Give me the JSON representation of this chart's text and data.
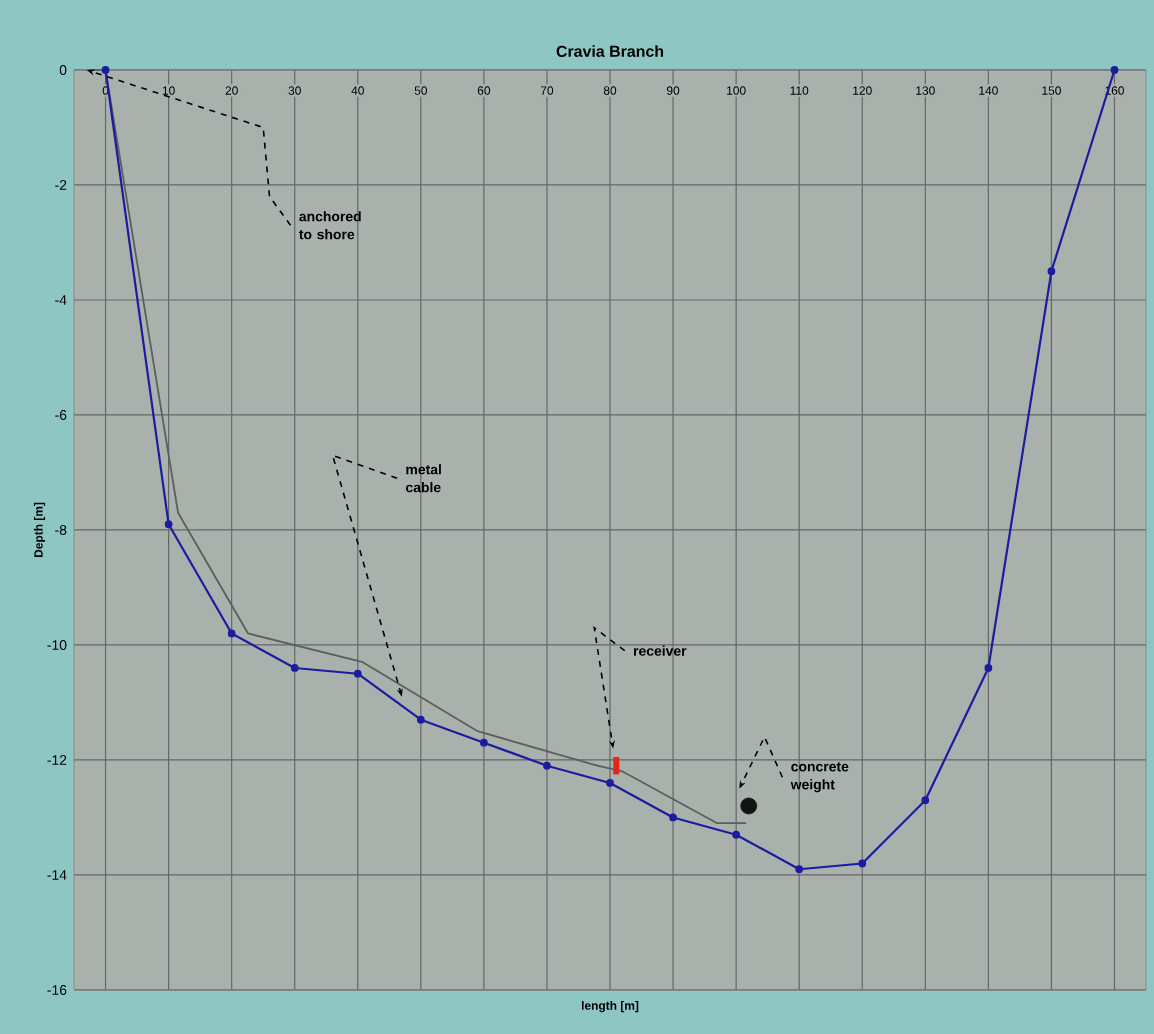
{
  "chart_data": {
    "type": "line",
    "title": "Cravia Branch",
    "xlabel": "length [m]",
    "ylabel": "Depth [m]",
    "xlim": [
      -5,
      165
    ],
    "ylim": [
      -16,
      0
    ],
    "xticks": [
      0,
      10,
      20,
      30,
      40,
      50,
      60,
      70,
      80,
      90,
      100,
      110,
      120,
      130,
      140,
      150,
      160
    ],
    "yticks": [
      -16,
      -14,
      -12,
      -10,
      -8,
      -6,
      -4,
      -2,
      0
    ],
    "grid": true,
    "series": [
      {
        "color": "#5a605c",
        "marker": "none",
        "x": [
          -2.5,
          0,
          11.5,
          22.6,
          40.8,
          59,
          78,
          82,
          97,
          101.6
        ],
        "values": [
          0,
          0,
          -7.7,
          -9.8,
          -10.3,
          -11.5,
          -12.1,
          -12.2,
          -13.1,
          -13.1
        ]
      },
      {
        "color": "#1c1ca0",
        "marker": "circle",
        "x": [
          0,
          10,
          20,
          30,
          40,
          50,
          60,
          70,
          80,
          90,
          100,
          110,
          120,
          130,
          140,
          150,
          160
        ],
        "values": [
          0,
          -7.9,
          -9.8,
          -10.4,
          -10.5,
          -11.3,
          -11.7,
          -12.1,
          -12.4,
          -13.0,
          -13.3,
          -13.9,
          -13.8,
          -12.7,
          -10.4,
          -3.5,
          0
        ]
      },
      {
        "type": "scatter",
        "color": "#e8231c",
        "marker": "square",
        "x": [
          81
        ],
        "values": [
          -12.1
        ]
      },
      {
        "type": "scatter",
        "color": "#111511",
        "marker": "circle",
        "x": [
          102
        ],
        "values": [
          -12.8
        ]
      }
    ],
    "annotations": [
      {
        "text": "anchored to shore",
        "x": -3,
        "y": 0
      },
      {
        "text": "metal cable",
        "x": 47,
        "y": -10.9
      },
      {
        "text": "receiver",
        "x": 80.5,
        "y": -11.8
      },
      {
        "text": "concrete weight",
        "x": 100.5,
        "y": -12.5
      }
    ]
  }
}
